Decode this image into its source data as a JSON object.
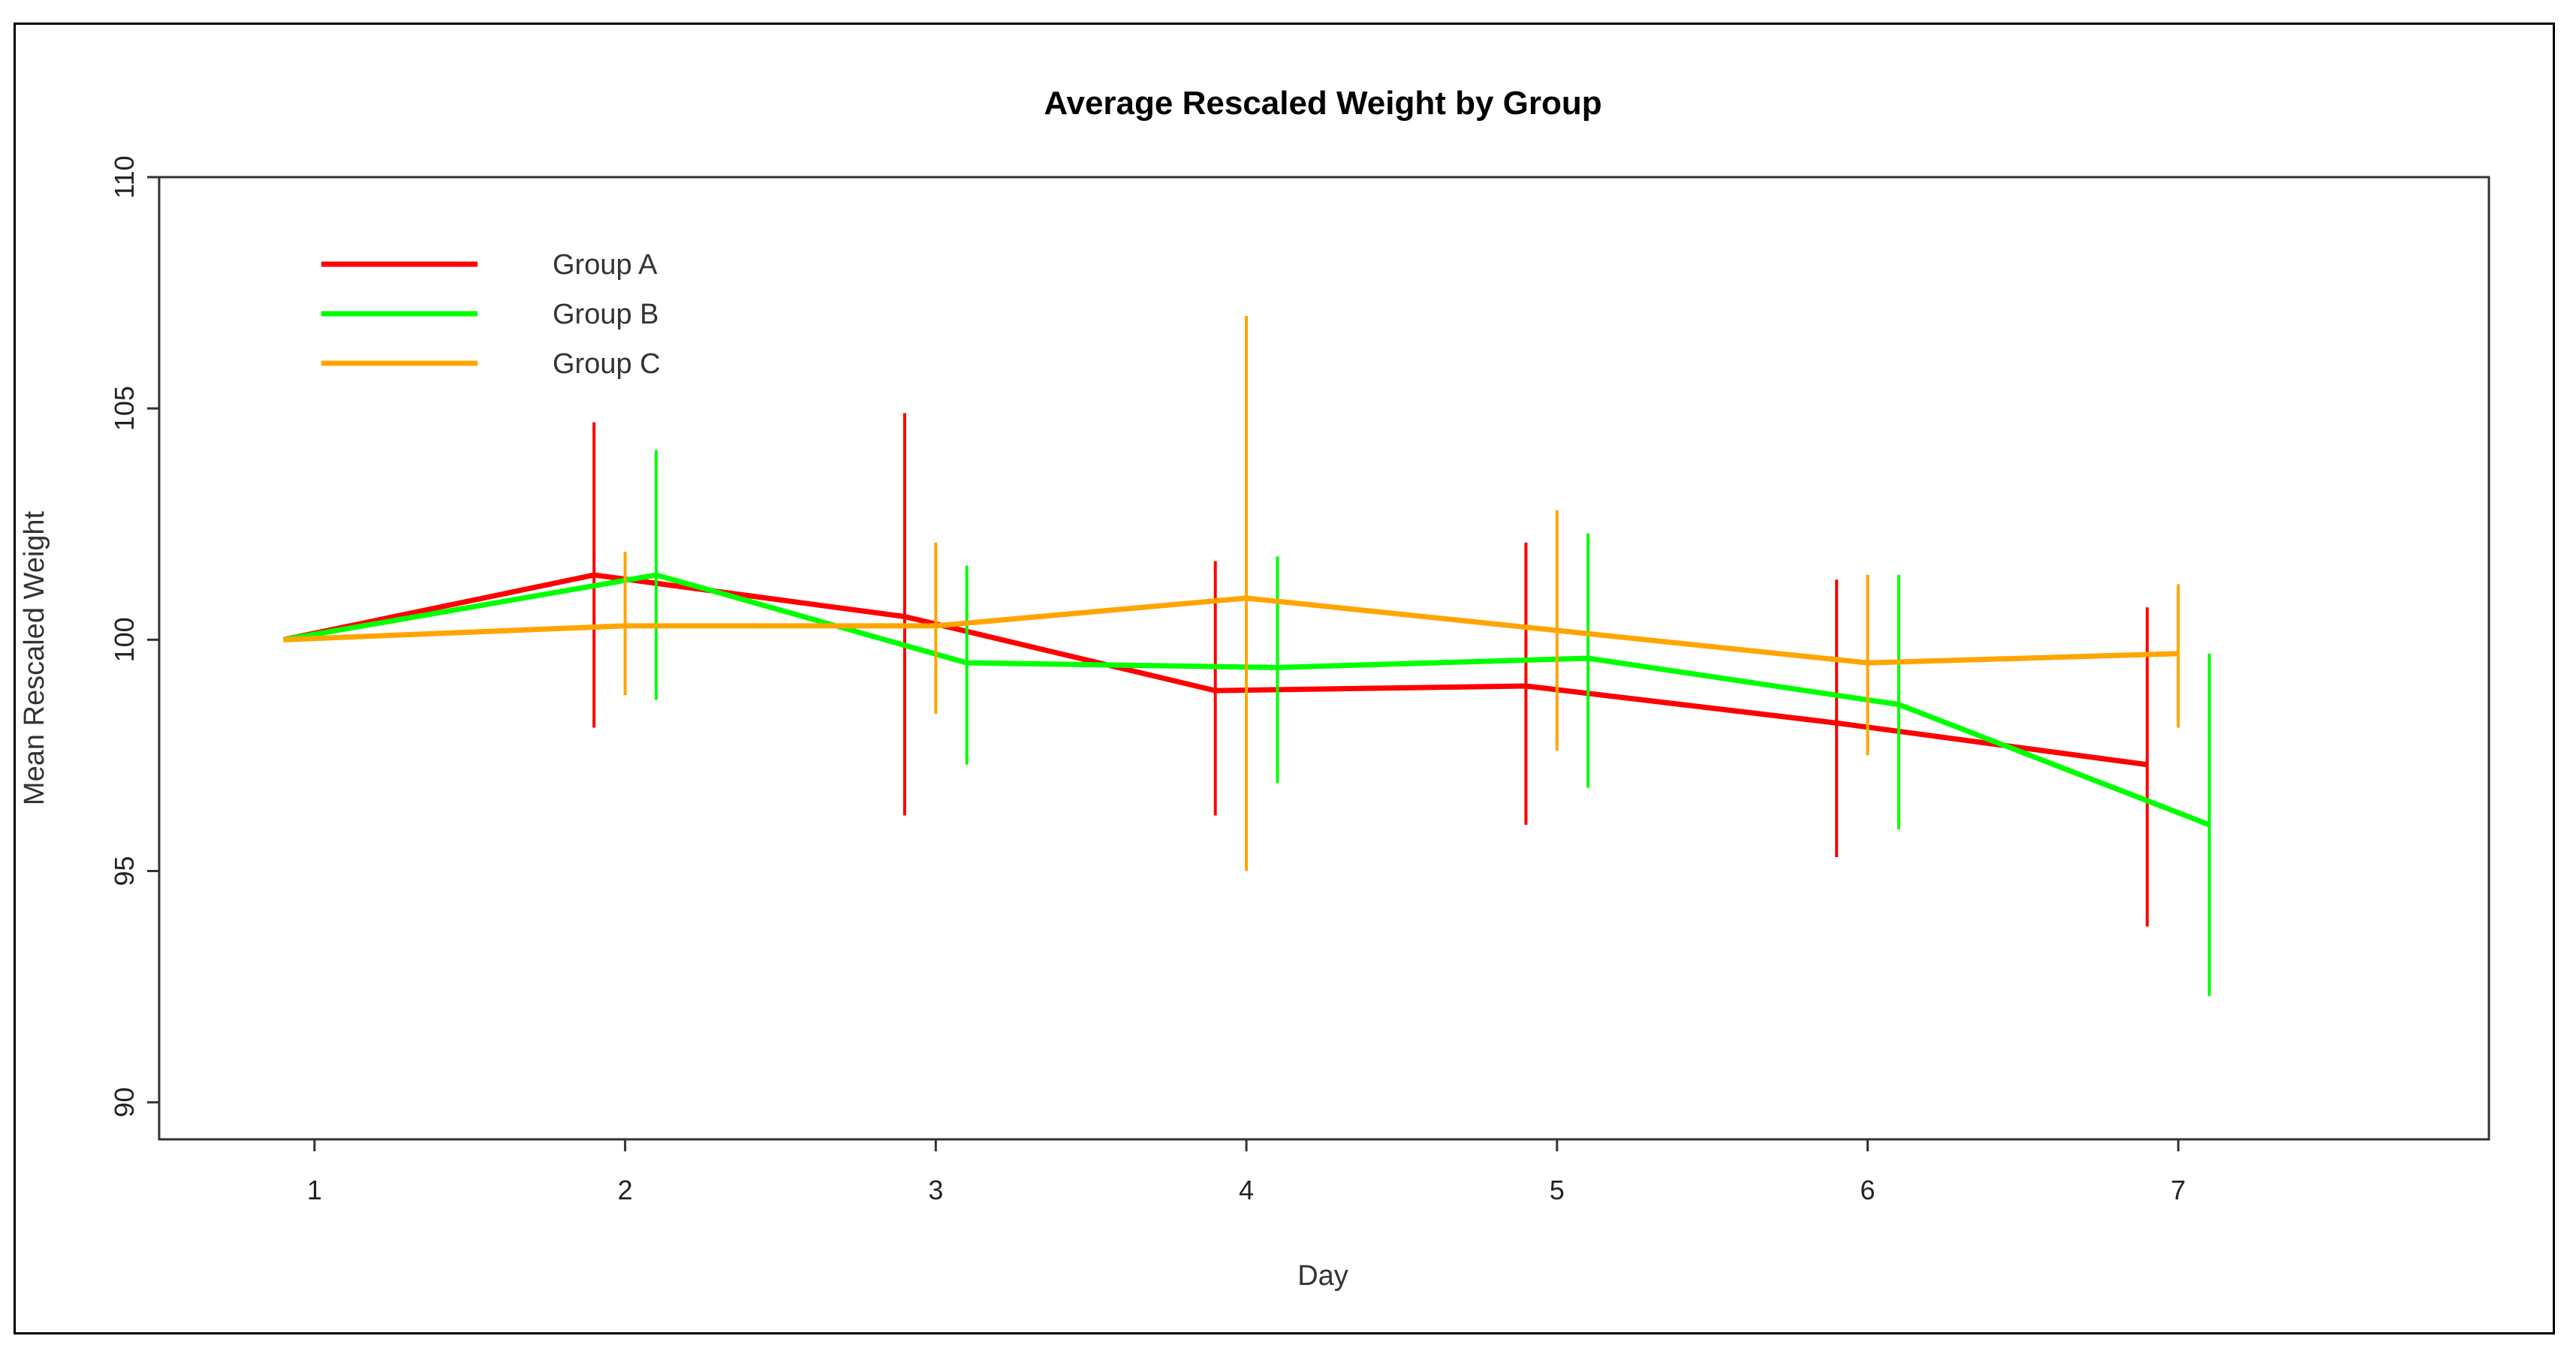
{
  "chart_data": {
    "type": "line",
    "title": "Average Rescaled Weight by Group",
    "xlabel": "Day",
    "ylabel": "Mean Rescaled Weight",
    "xlim": [
      0.5,
      8.0
    ],
    "ylim": [
      89.2,
      110.0
    ],
    "x_ticks": [
      1,
      2,
      3,
      4,
      5,
      6,
      7
    ],
    "y_ticks": [
      90,
      95,
      100,
      105,
      110
    ],
    "legend_position": "top-left",
    "grid": false,
    "series": [
      {
        "name": "Group A",
        "color": "#ff0000",
        "offset": -0.1,
        "x": [
          1,
          2,
          3,
          4,
          5,
          6,
          7
        ],
        "y": [
          100.0,
          101.4,
          100.5,
          98.9,
          99.0,
          98.2,
          97.3
        ],
        "err_low": [
          null,
          98.1,
          96.2,
          96.2,
          96.0,
          95.3,
          93.8
        ],
        "err_high": [
          null,
          104.7,
          104.9,
          101.7,
          102.1,
          101.3,
          100.7
        ]
      },
      {
        "name": "Group B",
        "color": "#00ff00",
        "offset": 0.1,
        "x": [
          1,
          2,
          3,
          4,
          5,
          6,
          7
        ],
        "y": [
          100.0,
          101.4,
          99.5,
          99.4,
          99.6,
          98.6,
          96.0
        ],
        "err_low": [
          null,
          98.7,
          97.3,
          96.9,
          96.8,
          95.9,
          92.3
        ],
        "err_high": [
          null,
          104.1,
          101.6,
          101.8,
          102.3,
          101.4,
          99.7
        ]
      },
      {
        "name": "Group C",
        "color": "#ffa500",
        "offset": 0.0,
        "x": [
          1,
          2,
          3,
          4,
          5,
          6,
          7
        ],
        "y": [
          100.0,
          100.3,
          100.3,
          100.9,
          100.2,
          99.5,
          99.7
        ],
        "err_low": [
          null,
          98.8,
          98.4,
          95.0,
          97.6,
          97.5,
          98.1
        ],
        "err_high": [
          null,
          101.9,
          102.1,
          107.0,
          102.8,
          101.4,
          101.2
        ]
      }
    ]
  }
}
